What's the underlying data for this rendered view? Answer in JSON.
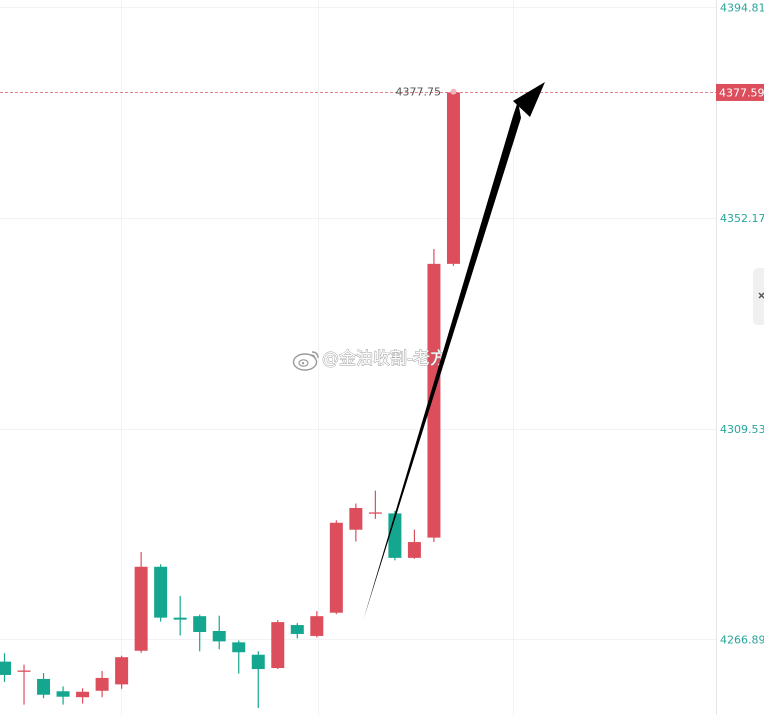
{
  "chart_data": {
    "type": "candlestick",
    "y_tick_labels": [
      "4394.81",
      "4352.17",
      "4309.53",
      "4266.89"
    ],
    "y_ticks": [
      4394.81,
      4352.17,
      4309.53,
      4266.89
    ],
    "ylim": [
      4251.6,
      4396.3
    ],
    "current_price_label": "4377.59",
    "current_price": 4377.59,
    "high_marker_label": "4377.75",
    "high_marker": 4377.75,
    "grid": true,
    "colors": {
      "up": "#dd4e5c",
      "down": "#15a68f",
      "axis_text": "#26a69a",
      "price_line": "#e57f8a",
      "arrow": "#000000",
      "grid": "#f2f2f2"
    },
    "candles": [
      {
        "o": 4262.4,
        "c": 4259.7,
        "h": 4264.1,
        "l": 4258.3
      },
      {
        "o": 4260.6,
        "c": 4260.6,
        "h": 4261.8,
        "l": 4253.7
      },
      {
        "o": 4258.9,
        "c": 4255.7,
        "h": 4260.1,
        "l": 4255.0
      },
      {
        "o": 4256.4,
        "c": 4255.3,
        "h": 4257.4,
        "l": 4253.7
      },
      {
        "o": 4255.2,
        "c": 4256.3,
        "h": 4257.0,
        "l": 4253.9
      },
      {
        "o": 4256.5,
        "c": 4259.1,
        "h": 4260.5,
        "l": 4255.2
      },
      {
        "o": 4257.8,
        "c": 4263.3,
        "h": 4263.6,
        "l": 4256.9
      },
      {
        "o": 4264.6,
        "c": 4281.6,
        "h": 4284.6,
        "l": 4264.2
      },
      {
        "o": 4281.6,
        "c": 4271.3,
        "h": 4282.1,
        "l": 4270.5
      },
      {
        "o": 4271.3,
        "c": 4270.9,
        "h": 4275.7,
        "l": 4267.7
      },
      {
        "o": 4271.6,
        "c": 4268.4,
        "h": 4271.9,
        "l": 4264.5
      },
      {
        "o": 4268.6,
        "c": 4266.5,
        "h": 4271.7,
        "l": 4264.9
      },
      {
        "o": 4266.3,
        "c": 4264.3,
        "h": 4266.7,
        "l": 4260.0
      },
      {
        "o": 4263.8,
        "c": 4260.9,
        "h": 4264.5,
        "l": 4253.0
      },
      {
        "o": 4261.1,
        "c": 4270.4,
        "h": 4270.8,
        "l": 4260.9
      },
      {
        "o": 4269.8,
        "c": 4268.0,
        "h": 4270.2,
        "l": 4267.1
      },
      {
        "o": 4267.6,
        "c": 4271.6,
        "h": 4272.6,
        "l": 4267.3
      },
      {
        "o": 4272.3,
        "c": 4290.5,
        "h": 4291.0,
        "l": 4272.0
      },
      {
        "o": 4289.1,
        "c": 4293.5,
        "h": 4294.4,
        "l": 4286.7
      },
      {
        "o": 4292.6,
        "c": 4292.6,
        "h": 4297.0,
        "l": 4291.3
      },
      {
        "o": 4292.4,
        "c": 4283.4,
        "h": 4292.9,
        "l": 4282.9
      },
      {
        "o": 4283.4,
        "c": 4286.6,
        "h": 4289.1,
        "l": 4283.2
      },
      {
        "o": 4287.5,
        "c": 4342.9,
        "h": 4345.9,
        "l": 4286.6
      },
      {
        "o": 4342.9,
        "c": 4377.6,
        "h": 4377.8,
        "l": 4342.5
      }
    ]
  },
  "watermark": {
    "text": "@金油收割-老方",
    "icon": "weibo-icon"
  },
  "annotation": {
    "icon": "up-arrow-icon"
  },
  "side_button": {
    "icon": "close-icon"
  }
}
